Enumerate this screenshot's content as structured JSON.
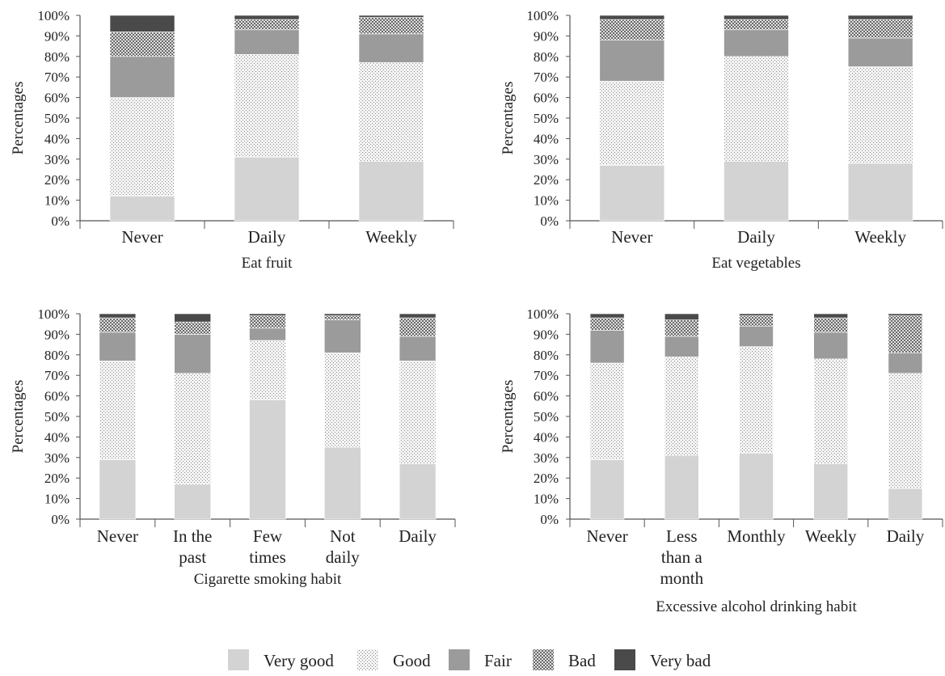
{
  "colors": {
    "very_good": "#d3d3d3",
    "good_bg": "#f4f4f4",
    "good_dot": "#8a8a8a",
    "fair": "#9b9b9b",
    "bad_bg": "#6a6a6a",
    "bad_dot": "#e0e0e0",
    "very_bad": "#4a4a4a",
    "axis": "#555555"
  },
  "legend": [
    {
      "key": "very_good",
      "label": "Very good"
    },
    {
      "key": "good",
      "label": "Good"
    },
    {
      "key": "fair",
      "label": "Fair"
    },
    {
      "key": "bad",
      "label": "Bad"
    },
    {
      "key": "very_bad",
      "label": "Very bad"
    }
  ],
  "y_ticks": [
    "0%",
    "10%",
    "20%",
    "30%",
    "40%",
    "50%",
    "60%",
    "70%",
    "80%",
    "90%",
    "100%"
  ],
  "chart_data": [
    {
      "type": "bar",
      "stacked": true,
      "title": "Eat fruit",
      "ylabel": "Percentages",
      "ylim": [
        0,
        100
      ],
      "categories": [
        [
          "Never"
        ],
        [
          "Daily"
        ],
        [
          "Weekly"
        ]
      ],
      "series": [
        {
          "name": "Very good",
          "values": [
            12,
            31,
            29
          ]
        },
        {
          "name": "Good",
          "values": [
            48,
            50,
            48
          ]
        },
        {
          "name": "Fair",
          "values": [
            20,
            12,
            14
          ]
        },
        {
          "name": "Bad",
          "values": [
            12,
            5,
            8
          ]
        },
        {
          "name": "Very bad",
          "values": [
            8,
            2,
            1
          ]
        }
      ]
    },
    {
      "type": "bar",
      "stacked": true,
      "title": "Eat vegetables",
      "ylabel": "Percentages",
      "ylim": [
        0,
        100
      ],
      "categories": [
        [
          "Never"
        ],
        [
          "Daily"
        ],
        [
          "Weekly"
        ]
      ],
      "series": [
        {
          "name": "Very good",
          "values": [
            27,
            29,
            28
          ]
        },
        {
          "name": "Good",
          "values": [
            41,
            51,
            47
          ]
        },
        {
          "name": "Fair",
          "values": [
            20,
            13,
            14
          ]
        },
        {
          "name": "Bad",
          "values": [
            10,
            5,
            9
          ]
        },
        {
          "name": "Very bad",
          "values": [
            2,
            2,
            2
          ]
        }
      ]
    },
    {
      "type": "bar",
      "stacked": true,
      "title": "Cigarette smoking habit",
      "ylabel": "Percentages",
      "ylim": [
        0,
        100
      ],
      "categories": [
        [
          "Never"
        ],
        [
          "In the",
          "past"
        ],
        [
          "Few",
          "times"
        ],
        [
          "Not",
          "daily"
        ],
        [
          "Daily"
        ]
      ],
      "series": [
        {
          "name": "Very good",
          "values": [
            29,
            17,
            58,
            35,
            27
          ]
        },
        {
          "name": "Good",
          "values": [
            48,
            54,
            29,
            46,
            50
          ]
        },
        {
          "name": "Fair",
          "values": [
            14,
            19,
            6,
            16,
            12
          ]
        },
        {
          "name": "Bad",
          "values": [
            7,
            6,
            6,
            2,
            9
          ]
        },
        {
          "name": "Very bad",
          "values": [
            2,
            4,
            1,
            1,
            2
          ]
        }
      ]
    },
    {
      "type": "bar",
      "stacked": true,
      "title": "Excessive alcohol drinking habit",
      "ylabel": "Percentages",
      "ylim": [
        0,
        100
      ],
      "categories": [
        [
          "Never"
        ],
        [
          "Less",
          "than a",
          "month"
        ],
        [
          "Monthly"
        ],
        [
          "Weekly"
        ],
        [
          "Daily"
        ]
      ],
      "series": [
        {
          "name": "Very good",
          "values": [
            29,
            31,
            32,
            27,
            15
          ]
        },
        {
          "name": "Good",
          "values": [
            47,
            48,
            52,
            51,
            56
          ]
        },
        {
          "name": "Fair",
          "values": [
            16,
            10,
            10,
            13,
            10
          ]
        },
        {
          "name": "Bad",
          "values": [
            6,
            8,
            5,
            7,
            18
          ]
        },
        {
          "name": "Very bad",
          "values": [
            2,
            3,
            1,
            2,
            1
          ]
        }
      ]
    }
  ]
}
